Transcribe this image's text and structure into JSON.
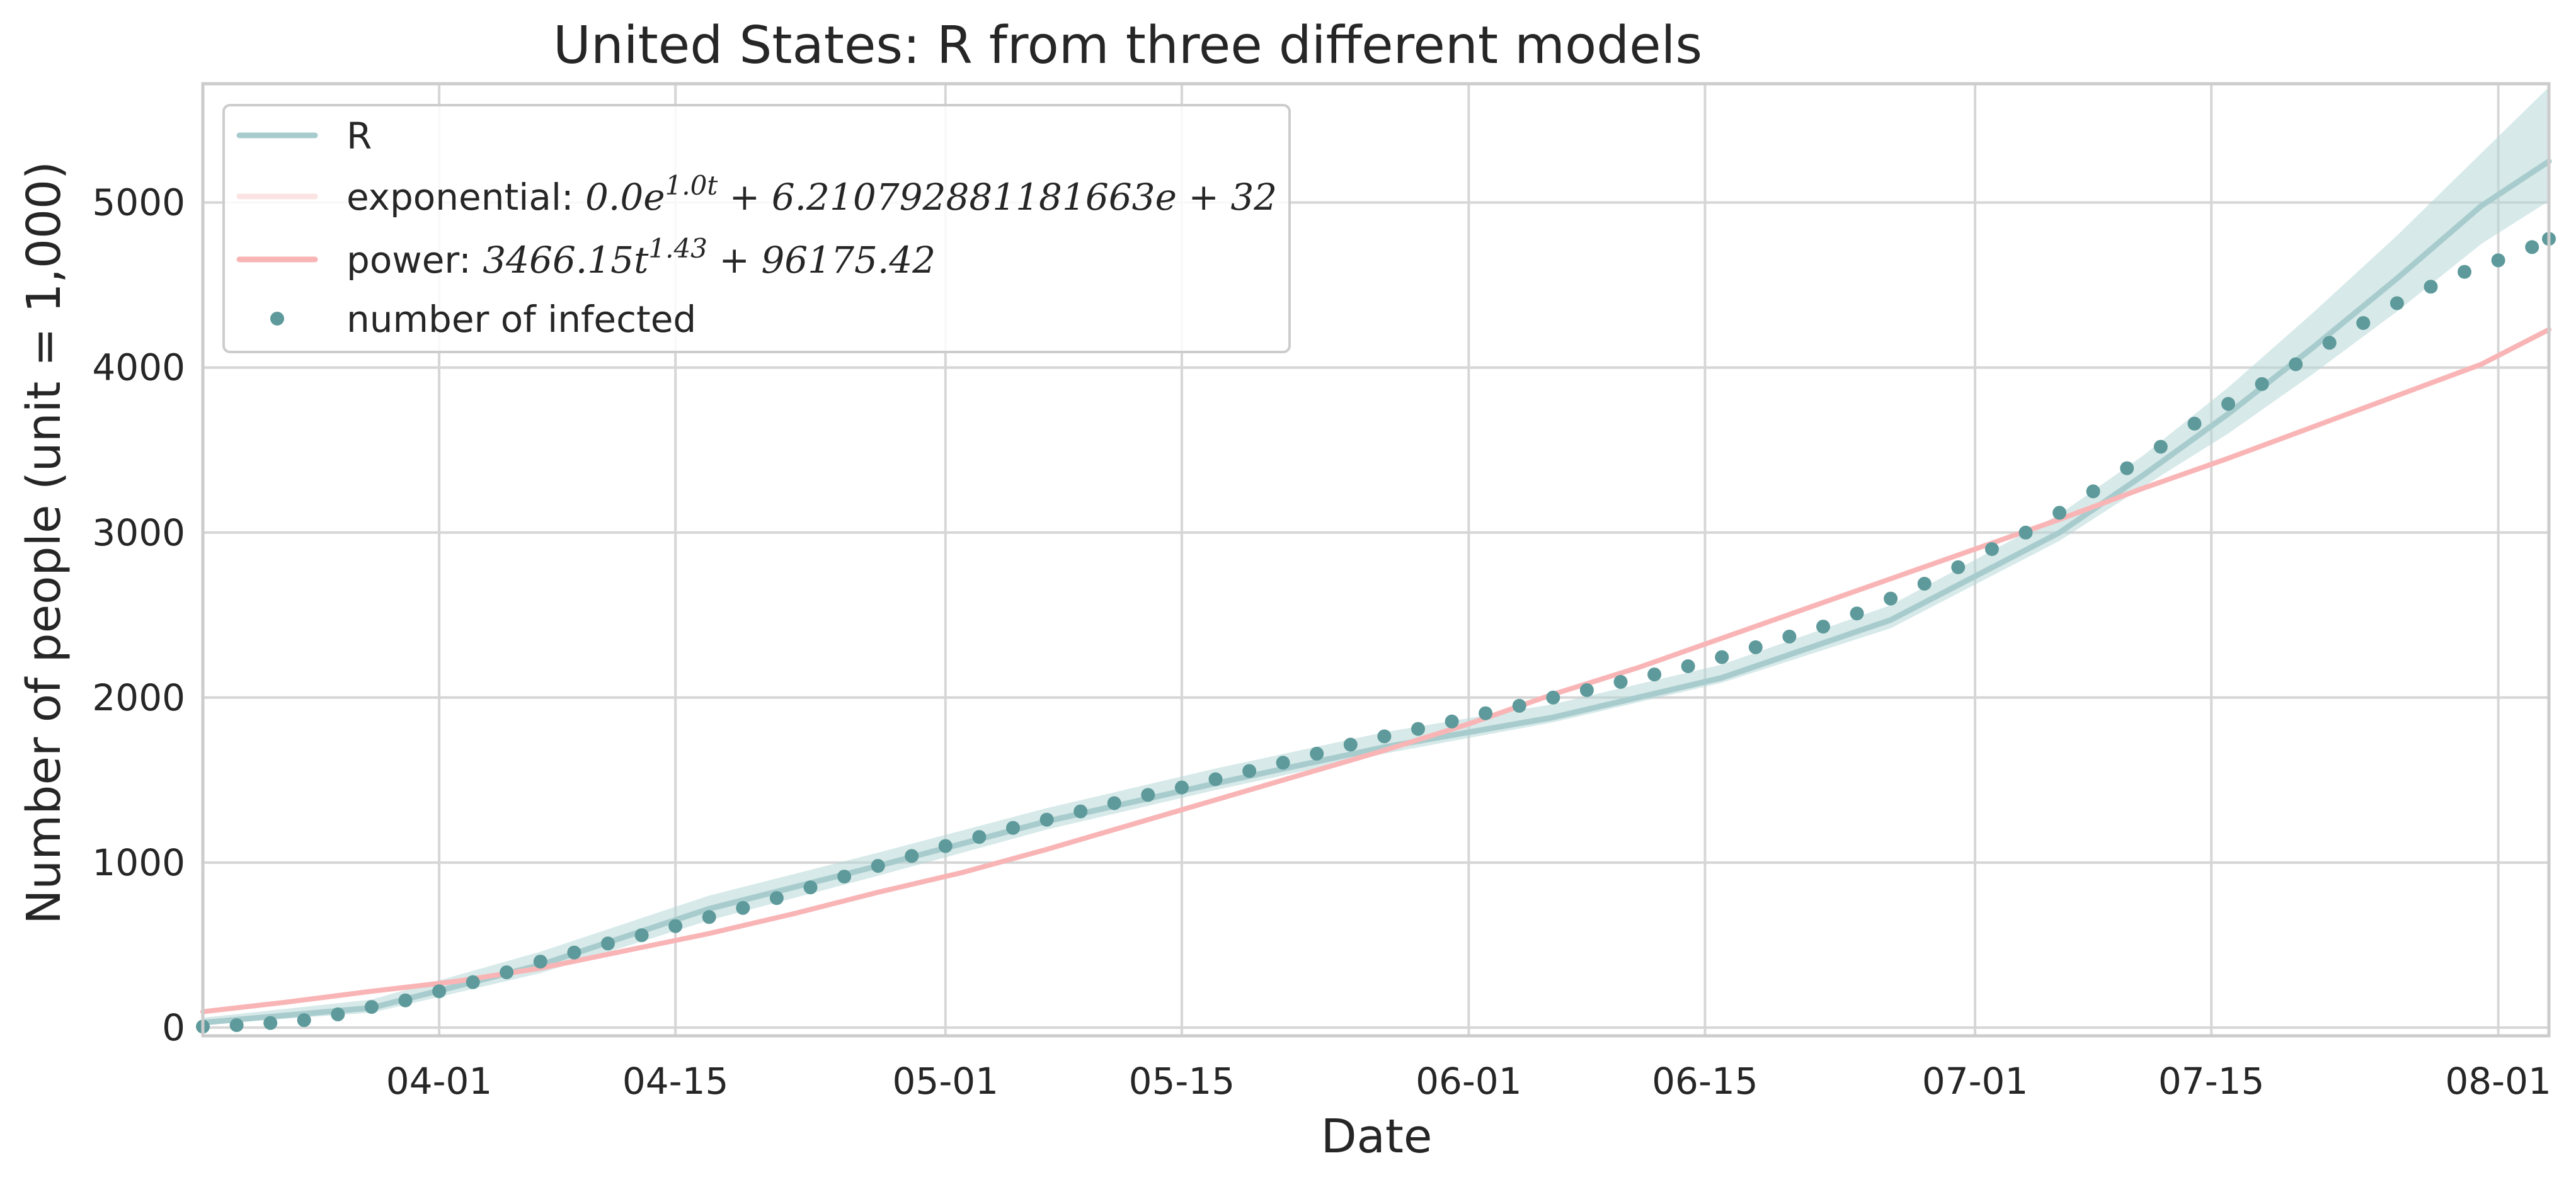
{
  "chart_data": {
    "type": "line",
    "title": "United States: R from three different models",
    "xlabel": "Date",
    "ylabel": "Number of people (unit = 1,000)",
    "x_ticks": [
      "04-01",
      "04-15",
      "05-01",
      "05-15",
      "06-01",
      "06-15",
      "07-01",
      "07-15",
      "08-01"
    ],
    "x_tick_days": [
      14,
      28,
      44,
      58,
      75,
      89,
      105,
      119,
      136
    ],
    "x_start": "03-18",
    "xlim_days": [
      0,
      139
    ],
    "y_ticks": [
      0,
      1000,
      2000,
      3000,
      4000,
      5000
    ],
    "ylim": [
      -50,
      5720
    ],
    "grid": true,
    "legend_position": "upper-left",
    "colors": {
      "fill": "#b7d7d7",
      "r_line": "#a8cccd",
      "exponential": "#fbe3e3",
      "power": "#f9b5b6",
      "points": "#5e9a9b",
      "grid": "#d6d6d6",
      "spine": "#cccccc"
    },
    "series": [
      {
        "name": "R",
        "kind": "line",
        "x": [
          0,
          10,
          20,
          30,
          40,
          50,
          60,
          70,
          80,
          90,
          100,
          110,
          115,
          120,
          125,
          130,
          135,
          139
        ],
        "y": [
          30,
          120,
          380,
          720,
          980,
          1250,
          1480,
          1700,
          1880,
          2120,
          2470,
          3000,
          3350,
          3720,
          4120,
          4540,
          4980,
          5250
        ],
        "band_lower": [
          20,
          90,
          330,
          650,
          920,
          1200,
          1440,
          1660,
          1850,
          2090,
          2420,
          2950,
          3280,
          3600,
          3960,
          4340,
          4750,
          5010
        ],
        "band_upper": [
          60,
          170,
          460,
          800,
          1060,
          1330,
          1570,
          1790,
          1960,
          2200,
          2560,
          3110,
          3470,
          3880,
          4330,
          4800,
          5300,
          5700
        ]
      },
      {
        "name": "exponential: ",
        "formula": {
          "pre": "0.0e",
          "sup": "1.0t",
          "post": " + 6.210792881181663e + 32"
        },
        "kind": "line",
        "x": [],
        "y": []
      },
      {
        "name": "power: ",
        "formula": {
          "pre": "3466.15t",
          "sup": "1.43",
          "post": " + 96175.42"
        },
        "kind": "line",
        "x": [
          0,
          5,
          10,
          15,
          20,
          25,
          30,
          35,
          40,
          45,
          50,
          55,
          60,
          65,
          70,
          75,
          80,
          85,
          90,
          95,
          100,
          105,
          110,
          115,
          120,
          125,
          130,
          135,
          139
        ],
        "y": [
          96,
          155,
          220,
          280,
          360,
          465,
          570,
          690,
          820,
          940,
          1080,
          1230,
          1380,
          1530,
          1680,
          1840,
          2020,
          2180,
          2360,
          2540,
          2720,
          2900,
          3080,
          3270,
          3450,
          3640,
          3830,
          4020,
          4230
        ]
      },
      {
        "name": "number of infected",
        "kind": "scatter",
        "x": [
          0,
          2,
          4,
          6,
          8,
          10,
          12,
          14,
          16,
          18,
          20,
          22,
          24,
          26,
          28,
          30,
          32,
          34,
          36,
          38,
          40,
          42,
          44,
          46,
          48,
          50,
          52,
          54,
          56,
          58,
          60,
          62,
          64,
          66,
          68,
          70,
          72,
          74,
          76,
          78,
          80,
          82,
          84,
          86,
          88,
          90,
          92,
          94,
          96,
          98,
          100,
          102,
          104,
          106,
          108,
          110,
          112,
          114,
          116,
          118,
          120,
          122,
          124,
          126,
          128,
          130,
          132,
          134,
          136,
          138,
          139
        ],
        "y": [
          6,
          15,
          28,
          45,
          80,
          125,
          165,
          220,
          275,
          335,
          400,
          455,
          510,
          560,
          615,
          670,
          725,
          785,
          850,
          915,
          980,
          1040,
          1100,
          1155,
          1210,
          1260,
          1310,
          1360,
          1410,
          1455,
          1505,
          1555,
          1605,
          1660,
          1715,
          1765,
          1810,
          1855,
          1905,
          1950,
          2000,
          2045,
          2095,
          2140,
          2190,
          2245,
          2305,
          2370,
          2430,
          2510,
          2600,
          2690,
          2790,
          2900,
          3000,
          3120,
          3250,
          3390,
          3520,
          3660,
          3780,
          3900,
          4020,
          4150,
          4270,
          4390,
          4490,
          4580,
          4650,
          4730,
          4780
        ]
      }
    ]
  }
}
